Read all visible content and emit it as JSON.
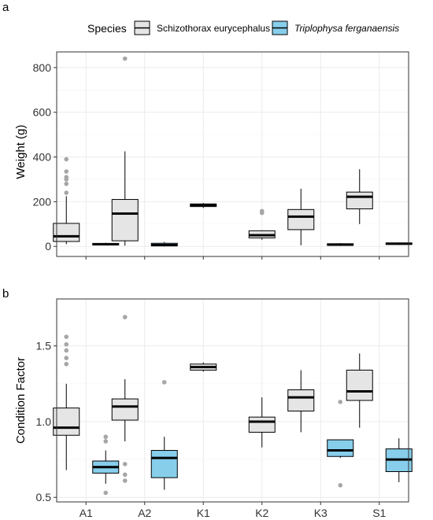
{
  "legend": {
    "title": "Species",
    "items": [
      {
        "label": "Schizothorax eurycephalus",
        "color": "#e5e5e5"
      },
      {
        "label": "Triplophysa ferganaensis",
        "color": "#87ceeb"
      }
    ]
  },
  "colors": {
    "schizothorax_fill": "#e5e5e5",
    "triplophysa_fill": "#87ceeb",
    "outlier": "#a6a6a6",
    "grid": "#ebebeb",
    "border": "#333333"
  },
  "chart_data": [
    {
      "panel_label": "a",
      "type": "boxplot",
      "xlabel": "",
      "ylabel": "Weight (g)",
      "categories": [
        "A1",
        "A2",
        "K1",
        "K2",
        "K3",
        "S1"
      ],
      "ylim": [
        -45,
        870
      ],
      "yticks": [
        0,
        200,
        400,
        600,
        800
      ],
      "grid": true,
      "show_xtick_labels": false,
      "series": [
        {
          "name": "Schizothorax eurycephalus",
          "boxes": [
            {
              "category": "A1",
              "min": 10,
              "q1": 22,
              "median": 45,
              "q3": 103,
              "max": 225,
              "outliers": [
                240,
                280,
                300,
                310,
                335,
                390
              ]
            },
            {
              "category": "A2",
              "min": 3,
              "q1": 25,
              "median": 147,
              "q3": 210,
              "max": 425,
              "outliers": [
                840
              ]
            },
            {
              "category": "K1",
              "min": 172,
              "q1": 178,
              "median": 185,
              "q3": 190,
              "max": 194,
              "outliers": []
            },
            {
              "category": "K2",
              "min": 30,
              "q1": 38,
              "median": 50,
              "q3": 70,
              "max": 72,
              "outliers": [
                150,
                158
              ]
            },
            {
              "category": "K3",
              "min": 5,
              "q1": 75,
              "median": 133,
              "q3": 165,
              "max": 258,
              "outliers": []
            },
            {
              "category": "S1",
              "min": 100,
              "q1": 168,
              "median": 222,
              "q3": 243,
              "max": 345,
              "outliers": []
            }
          ]
        },
        {
          "name": "Triplophysa ferganaensis",
          "boxes": [
            {
              "category": "A1",
              "min": 4,
              "q1": 6,
              "median": 10,
              "q3": 13,
              "max": 16,
              "outliers": []
            },
            {
              "category": "A2",
              "min": 0,
              "q1": 2,
              "median": 6,
              "q3": 14,
              "max": 20,
              "outliers": []
            },
            {
              "category": "K3",
              "min": 2,
              "q1": 5,
              "median": 8,
              "q3": 12,
              "max": 15,
              "outliers": []
            },
            {
              "category": "S1",
              "min": 6,
              "q1": 9,
              "median": 12,
              "q3": 15,
              "max": 17,
              "outliers": []
            }
          ]
        }
      ]
    },
    {
      "panel_label": "b",
      "type": "boxplot",
      "xlabel": "",
      "ylabel": "Condition Factor",
      "categories": [
        "A1",
        "A2",
        "K1",
        "K2",
        "K3",
        "S1"
      ],
      "ylim": [
        0.47,
        1.81
      ],
      "yticks": [
        0.5,
        1.0,
        1.5
      ],
      "ytick_labels": [
        "0.5",
        "1.0",
        "1.5"
      ],
      "grid": true,
      "show_xtick_labels": true,
      "series": [
        {
          "name": "Schizothorax eurycephalus",
          "boxes": [
            {
              "category": "A1",
              "min": 0.68,
              "q1": 0.91,
              "median": 0.96,
              "q3": 1.09,
              "max": 1.25,
              "outliers": [
                1.38,
                1.42,
                1.47,
                1.51,
                1.56
              ]
            },
            {
              "category": "A2",
              "min": 0.87,
              "q1": 1.01,
              "median": 1.1,
              "q3": 1.15,
              "max": 1.28,
              "outliers": [
                0.61,
                0.65,
                0.72,
                1.69
              ]
            },
            {
              "category": "K1",
              "min": 1.33,
              "q1": 1.34,
              "median": 1.36,
              "q3": 1.38,
              "max": 1.39,
              "outliers": []
            },
            {
              "category": "K2",
              "min": 0.83,
              "q1": 0.93,
              "median": 1.0,
              "q3": 1.03,
              "max": 1.16,
              "outliers": []
            },
            {
              "category": "K3",
              "min": 0.93,
              "q1": 1.07,
              "median": 1.16,
              "q3": 1.21,
              "max": 1.34,
              "outliers": []
            },
            {
              "category": "S1",
              "min": 0.96,
              "q1": 1.14,
              "median": 1.2,
              "q3": 1.34,
              "max": 1.45,
              "outliers": []
            }
          ]
        },
        {
          "name": "Triplophysa ferganaensis",
          "boxes": [
            {
              "category": "A1",
              "min": 0.59,
              "q1": 0.66,
              "median": 0.7,
              "q3": 0.74,
              "max": 0.81,
              "outliers": [
                0.53,
                0.87,
                0.9
              ]
            },
            {
              "category": "A2",
              "min": 0.55,
              "q1": 0.63,
              "median": 0.76,
              "q3": 0.81,
              "max": 0.9,
              "outliers": [
                1.26
              ]
            },
            {
              "category": "K3",
              "min": 0.76,
              "q1": 0.77,
              "median": 0.81,
              "q3": 0.88,
              "max": 0.88,
              "outliers": [
                0.58,
                1.13
              ]
            },
            {
              "category": "S1",
              "min": 0.6,
              "q1": 0.67,
              "median": 0.75,
              "q3": 0.82,
              "max": 0.89,
              "outliers": []
            }
          ]
        }
      ]
    }
  ]
}
